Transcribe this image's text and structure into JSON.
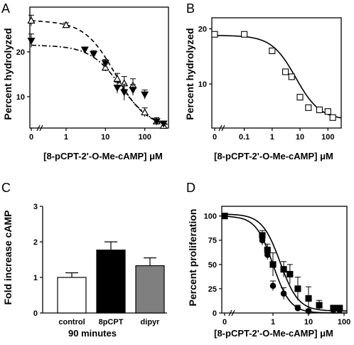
{
  "chart_data": [
    {
      "panel": "A",
      "type": "scatter",
      "ylabel": "Percent hydrolyzed",
      "xlabel": "[8-pCPT-2'-O-Me-cAMP] μM",
      "x_scale": "log",
      "x_tick_labels": [
        "0",
        "1",
        "10",
        "100"
      ],
      "y_tick_labels": [
        "10",
        "20"
      ],
      "xlim": [
        0.3,
        400
      ],
      "ylim": [
        3,
        30
      ],
      "series": [
        {
          "marker": "open-triangle",
          "line": "dashed",
          "x": [
            0,
            1,
            10,
            20,
            30,
            50,
            100,
            200,
            300
          ],
          "y": [
            27,
            26,
            16.5,
            14,
            13,
            12.5,
            6.5,
            4.5,
            3.5
          ],
          "err": [
            1.2,
            0.5,
            0.8,
            1.2,
            1.5,
            1.5,
            1.0,
            0.8,
            0.6
          ]
        },
        {
          "marker": "filled-triangle",
          "line": "dashdot",
          "x": [
            0,
            3,
            5,
            10,
            20,
            30,
            50,
            100,
            200,
            300
          ],
          "y": [
            22.5,
            20.5,
            19.5,
            17.5,
            12,
            11,
            11.5,
            10.5,
            4.5,
            4
          ],
          "err": [
            1.5,
            0.6,
            0.8,
            0.8,
            1.2,
            1.8,
            1.2,
            1.0,
            0.5,
            0.5
          ]
        }
      ],
      "fits": [
        {
          "top": 27,
          "bottom": 3,
          "ec50": 18,
          "hill": 1.1,
          "style": "dashed"
        },
        {
          "top": 21.5,
          "bottom": 3,
          "ec50": 25,
          "hill": 1.1,
          "style": "dashdot"
        }
      ]
    },
    {
      "panel": "B",
      "type": "scatter",
      "ylabel": "Percent hydrolyzed",
      "xlabel": "[8-pCPT-2'-O-Me-cAMP] μM",
      "x_scale": "log",
      "x_tick_labels": [
        "0",
        "0.1",
        "1",
        "10",
        "100"
      ],
      "y_tick_labels": [
        "10",
        "20"
      ],
      "xlim": [
        0.025,
        300
      ],
      "ylim": [
        2,
        22
      ],
      "series": [
        {
          "marker": "open-square",
          "x": [
            0,
            0.1,
            1,
            3,
            5,
            10,
            20,
            50,
            100,
            150
          ],
          "y": [
            19,
            19,
            16,
            12.2,
            11.3,
            7.6,
            5.7,
            5.3,
            5,
            3.9
          ]
        }
      ],
      "fits": [
        {
          "top": 18.8,
          "bottom": 3.5,
          "ec50": 7,
          "hill": 1.0,
          "style": "solid"
        }
      ]
    },
    {
      "panel": "C",
      "type": "bar",
      "ylabel": "Fold increase cAMP",
      "xlabel": "90 minutes",
      "categories": [
        "control",
        "8pCPT",
        "dipyr"
      ],
      "values": [
        1.0,
        1.77,
        1.33
      ],
      "err": [
        0.13,
        0.23,
        0.22
      ],
      "colors": [
        "#ffffff",
        "#000000",
        "#7f7f7f"
      ],
      "y_tick_labels": [
        "0",
        "1",
        "2",
        "3"
      ],
      "ylim": [
        0,
        3
      ]
    },
    {
      "panel": "D",
      "type": "scatter",
      "ylabel": "Percent proliferation",
      "xlabel": "[8-pCPT-2'-O-Me-cAMP] μM",
      "x_scale": "log",
      "x_tick_labels": [
        "0",
        "1",
        "10",
        "100"
      ],
      "y_tick_labels": [
        "0",
        "25",
        "50",
        "75",
        "100"
      ],
      "xlim": [
        0.1,
        120
      ],
      "ylim": [
        0,
        110
      ],
      "series": [
        {
          "marker": "filled-circle",
          "x": [
            0,
            0.5,
            0.7,
            1,
            2,
            5,
            10,
            50,
            75
          ],
          "y": [
            100,
            75,
            60,
            28,
            20,
            5,
            2,
            3,
            3
          ],
          "err": [
            3,
            5,
            5,
            5,
            6,
            3,
            2,
            1,
            1
          ]
        },
        {
          "marker": "filled-square",
          "x": [
            0,
            0.5,
            0.7,
            1,
            2,
            3,
            5,
            10,
            20,
            50,
            75
          ],
          "y": [
            100,
            80,
            65,
            50,
            45,
            40,
            25,
            15,
            8,
            5,
            5
          ],
          "err": [
            3,
            5,
            6,
            12,
            8,
            10,
            12,
            12,
            5,
            3,
            3
          ]
        }
      ],
      "fits": [
        {
          "top": 100,
          "bottom": 0,
          "ec50": 1.0,
          "hill": 1.8,
          "style": "solid"
        },
        {
          "top": 102,
          "bottom": 2,
          "ec50": 1.6,
          "hill": 1.7,
          "style": "solid"
        }
      ]
    }
  ]
}
